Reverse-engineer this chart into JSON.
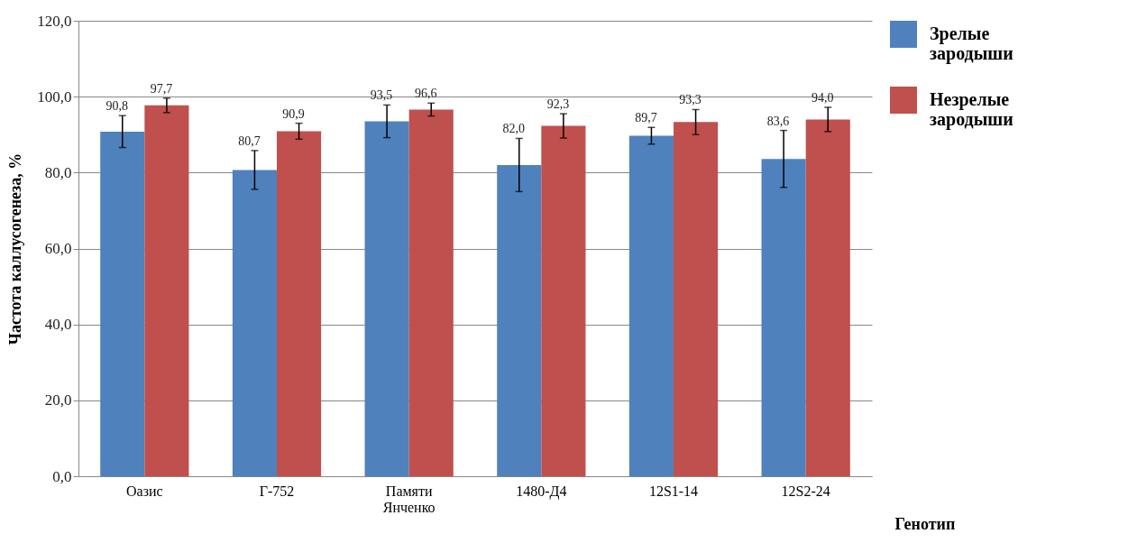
{
  "chart_data": {
    "type": "bar",
    "xlabel": "Генотип",
    "ylabel": "Частота каллусогенеза, %",
    "categories": [
      "Оазис",
      "Г-752",
      "Памяти Янченко",
      "1480-Д4",
      "12S1-14",
      "12S2-24"
    ],
    "series": [
      {
        "name": "Зрелые зародыши",
        "color": "#4f81bd",
        "values": [
          90.8,
          80.7,
          93.5,
          82.0,
          89.7,
          83.6
        ],
        "errors": [
          4.2,
          5.1,
          4.3,
          7.0,
          2.2,
          7.5
        ],
        "value_labels": [
          "90,8",
          "80,7",
          "93,5",
          "82,0",
          "89,7",
          "83,6"
        ]
      },
      {
        "name": "Незрелые зародыши",
        "color": "#c0504d",
        "values": [
          97.7,
          90.9,
          96.6,
          92.3,
          93.3,
          94.0
        ],
        "errors": [
          1.9,
          2.1,
          1.7,
          3.2,
          3.3,
          3.2
        ],
        "value_labels": [
          "97,7",
          "90,9",
          "96,6",
          "92,3",
          "93,3",
          "94,0"
        ]
      }
    ],
    "ylim": [
      0,
      120
    ],
    "yticks": [
      {
        "value": 0,
        "label": "0,0"
      },
      {
        "value": 20,
        "label": "20,0"
      },
      {
        "value": 40,
        "label": "40,0"
      },
      {
        "value": 60,
        "label": "60,0"
      },
      {
        "value": 80,
        "label": "80,0"
      },
      {
        "value": 100,
        "label": "100,0"
      },
      {
        "value": 120,
        "label": "120,0"
      }
    ],
    "grid": "y",
    "legend": "right"
  }
}
